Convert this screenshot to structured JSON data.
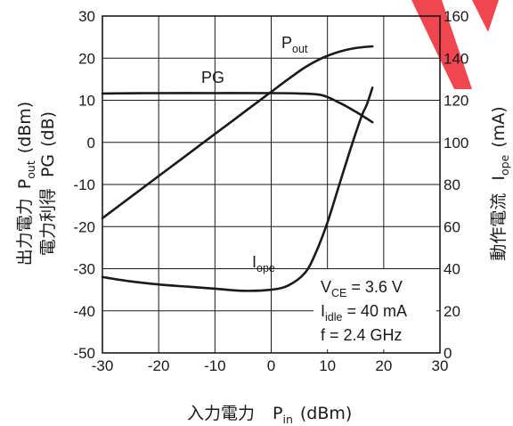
{
  "chart_data": {
    "type": "line",
    "x_axis": {
      "label_prefix": "入力電力",
      "label_symbol": "P",
      "label_sub": "in",
      "label_unit": "(dBm)",
      "range": [
        -30,
        30
      ],
      "ticks": [
        "-30",
        "-20",
        "-10",
        "0",
        "10",
        "20",
        "30"
      ]
    },
    "y_left": {
      "line1_jp": "出力電力",
      "line1_symbol": "P",
      "line1_sub": "out",
      "line1_unit": "(dBm)",
      "line2_jp": "電力利得",
      "line2_symbol": "PG",
      "line2_unit": "(dB)",
      "range": [
        -50,
        30
      ],
      "ticks": [
        "-50",
        "-40",
        "-30",
        "-20",
        "-10",
        "0",
        "10",
        "20",
        "30"
      ]
    },
    "y_right": {
      "label_jp": "動作電流",
      "label_symbol": "I",
      "label_sub": "ope",
      "label_unit": "(mA)",
      "range": [
        0,
        160
      ],
      "ticks": [
        "0",
        "20",
        "40",
        "60",
        "80",
        "100",
        "120",
        "140",
        "160"
      ]
    },
    "grid": true,
    "series": [
      {
        "name": "Pout",
        "label_main": "P",
        "label_sub": "out",
        "axis": "left",
        "x": [
          -30,
          -25,
          -20,
          -15,
          -10,
          -5,
          0,
          3,
          6,
          9,
          12,
          15,
          18
        ],
        "y": [
          -18,
          -13,
          -8,
          -3,
          2,
          7,
          12,
          15,
          17.8,
          20,
          21.5,
          22.4,
          22.8
        ]
      },
      {
        "name": "PG",
        "label_main": "PG",
        "label_sub": "",
        "axis": "left",
        "x": [
          -30,
          -20,
          -10,
          0,
          5,
          9,
          12,
          15,
          18
        ],
        "y": [
          11.6,
          11.7,
          11.7,
          11.7,
          11.6,
          11.2,
          9.5,
          7.3,
          4.8
        ]
      },
      {
        "name": "Iope",
        "label_main": "I",
        "label_sub": "ope",
        "axis": "right",
        "x": [
          -30,
          -25,
          -20,
          -15,
          -10,
          -5,
          0,
          3,
          6,
          8,
          10,
          12,
          14,
          16,
          17,
          18
        ],
        "y": [
          36,
          34,
          32.5,
          31.5,
          30.5,
          29.5,
          30,
          32,
          38,
          48,
          62,
          79,
          96,
          112,
          118,
          126
        ]
      }
    ],
    "annotations": [
      {
        "main": "V",
        "sub": "CE",
        "rest": " = 3.6 V"
      },
      {
        "main": "I",
        "sub": "idle",
        "rest": " = 40 mA"
      },
      {
        "main": "f",
        "sub": "",
        "rest": " = 2.4 GHz"
      }
    ]
  },
  "colors": {
    "ink": "#1a1a1a",
    "watermark": "#f0323c"
  }
}
